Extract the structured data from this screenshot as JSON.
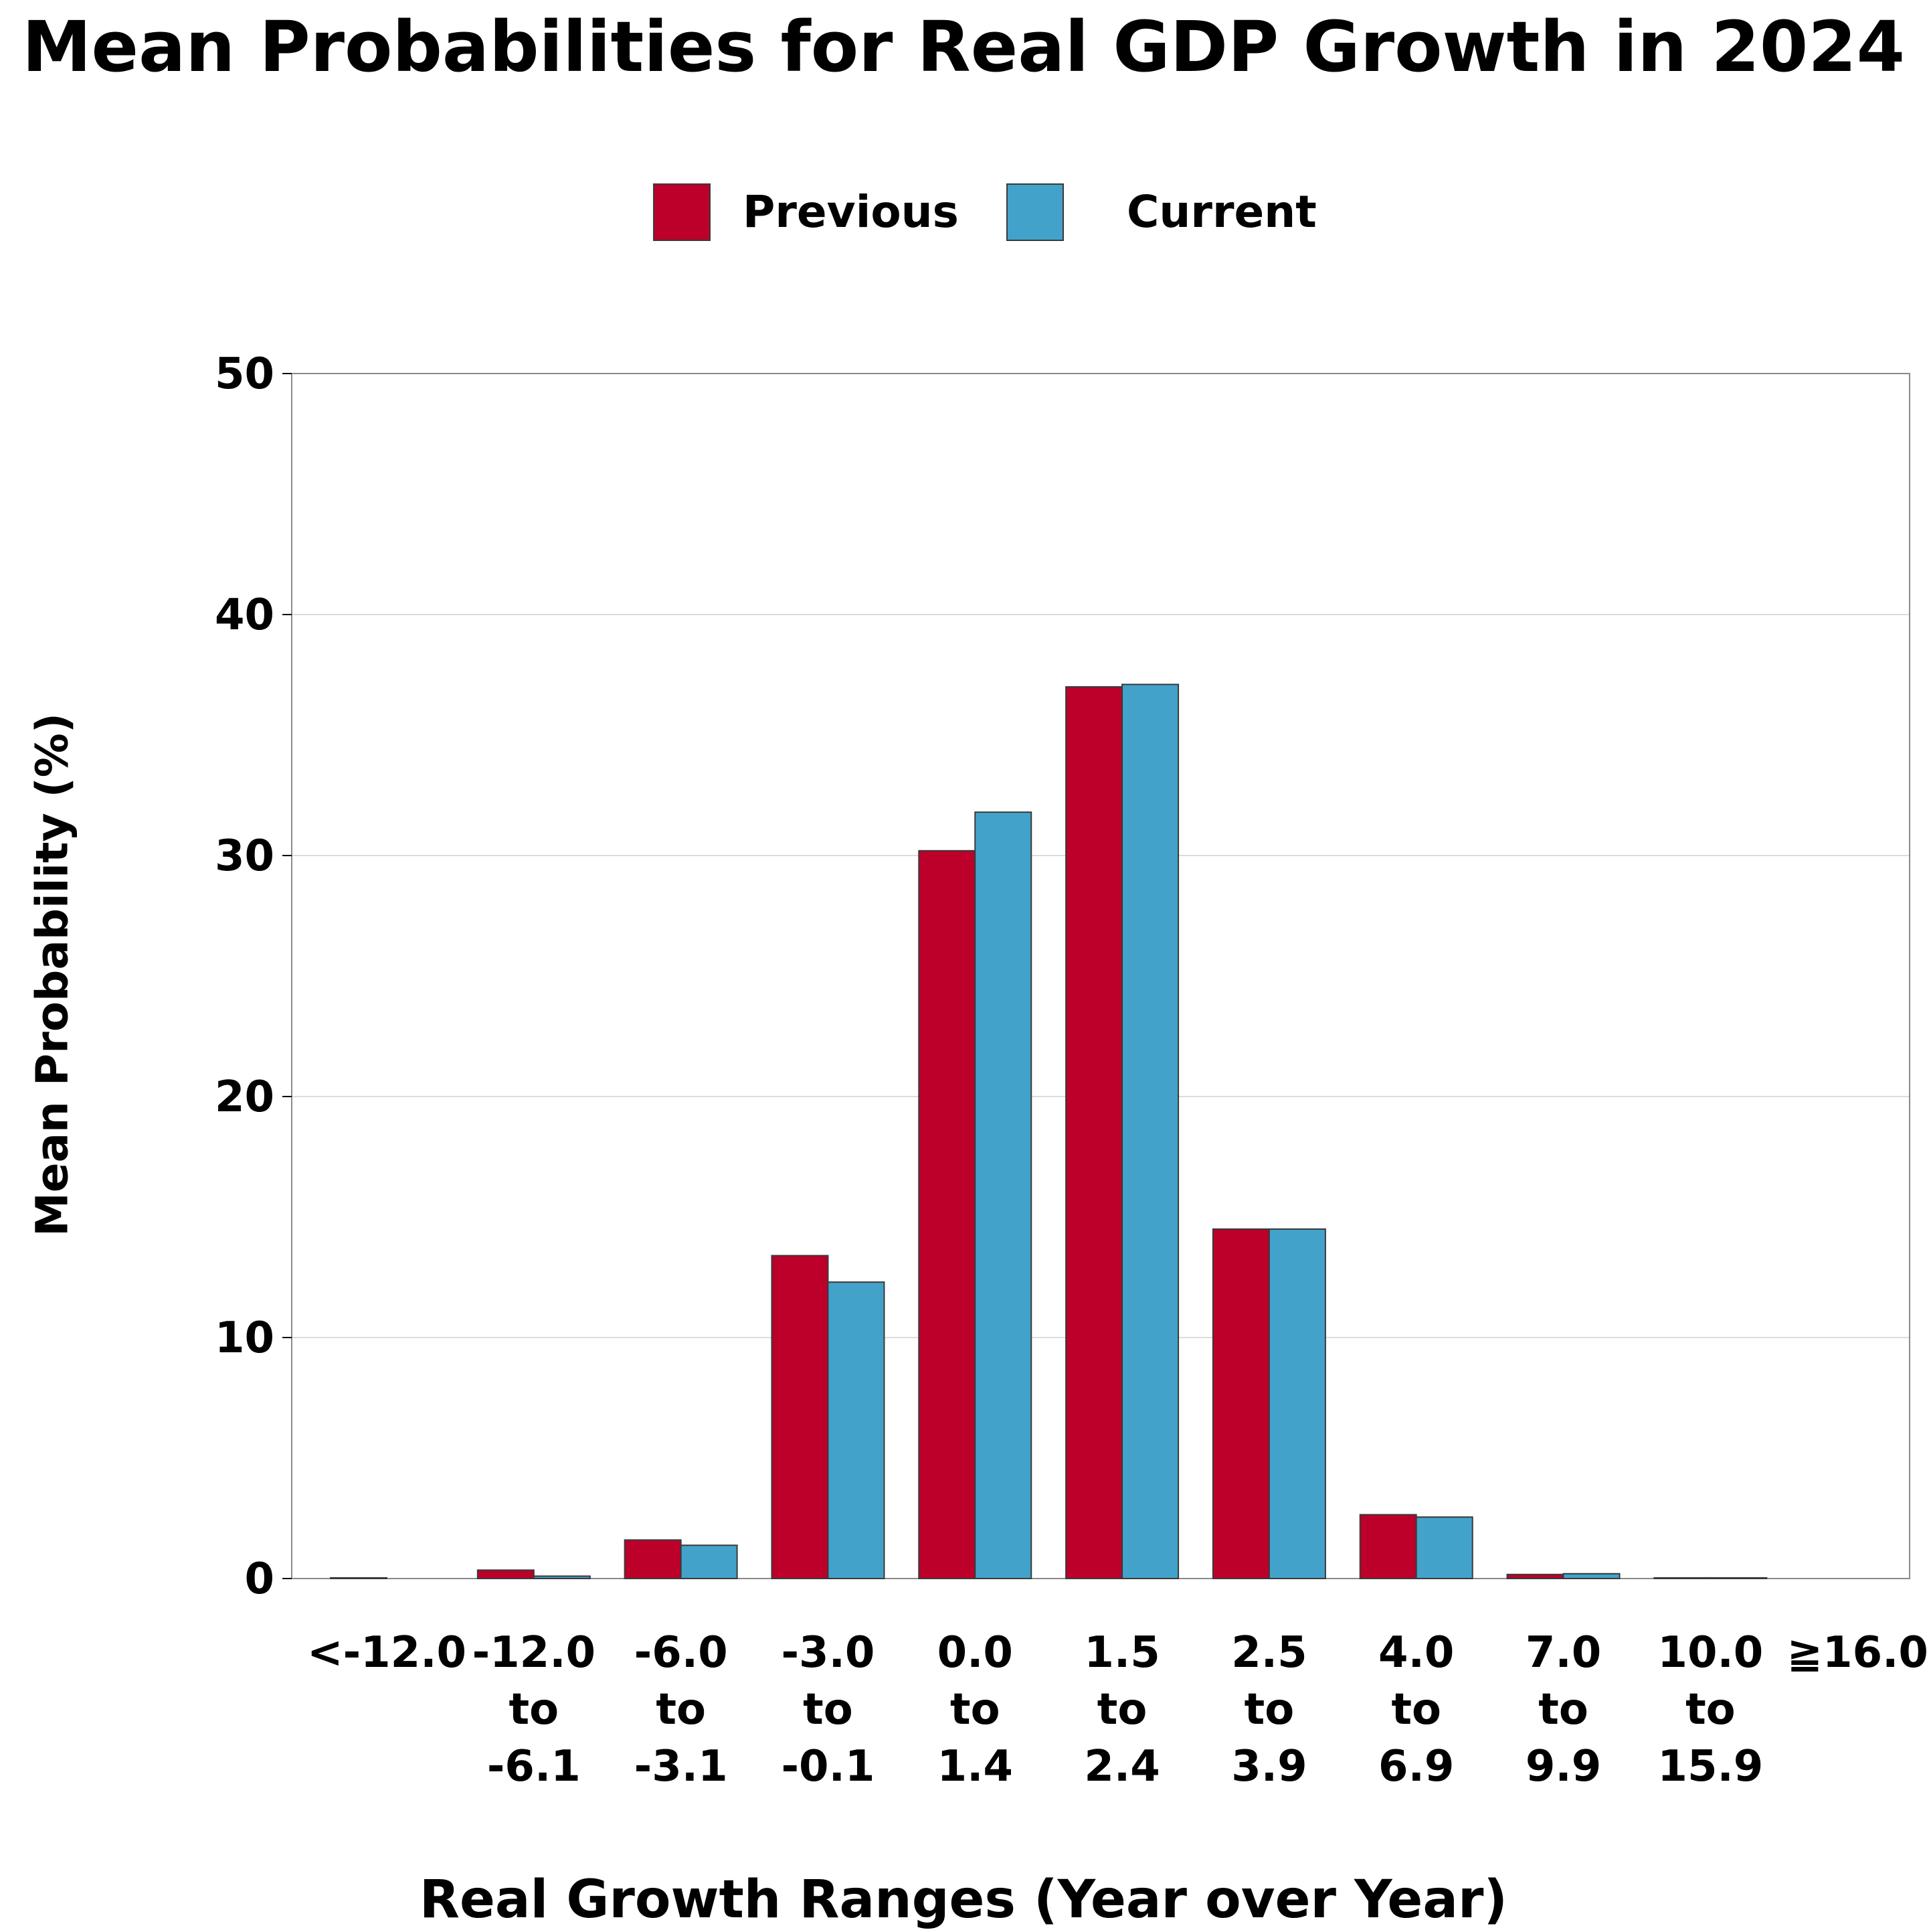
{
  "chart_data": {
    "type": "bar",
    "title": "Mean Probabilities for Real GDP Growth in 2024",
    "xlabel": "Real Growth Ranges (Year over Year)",
    "ylabel": "Mean Probability (%)",
    "ylim": [
      0,
      50
    ],
    "yticks": [
      0,
      10,
      20,
      30,
      40,
      50
    ],
    "grid": "horizontal",
    "legend_position": "top-center",
    "categories": [
      [
        "<-12.0"
      ],
      [
        "-12.0",
        "to",
        "-6.1"
      ],
      [
        "-6.0",
        "to",
        "-3.1"
      ],
      [
        "-3.0",
        "to",
        "-0.1"
      ],
      [
        "0.0",
        "to",
        "1.4"
      ],
      [
        "1.5",
        "to",
        "2.4"
      ],
      [
        "2.5",
        "to",
        "3.9"
      ],
      [
        "4.0",
        "to",
        "6.9"
      ],
      [
        "7.0",
        "to",
        "9.9"
      ],
      [
        "10.0",
        "to",
        "15.9"
      ],
      [
        "≧16.0"
      ]
    ],
    "series": [
      {
        "name": "Previous",
        "color": "#bc0029",
        "values": [
          0.03,
          0.35,
          1.6,
          13.4,
          30.2,
          37.0,
          14.5,
          2.65,
          0.17,
          0.03,
          0.0
        ]
      },
      {
        "name": "Current",
        "color": "#43a2ca",
        "values": [
          0.0,
          0.1,
          1.38,
          12.3,
          31.8,
          37.1,
          14.5,
          2.55,
          0.2,
          0.03,
          0.0
        ]
      }
    ]
  }
}
